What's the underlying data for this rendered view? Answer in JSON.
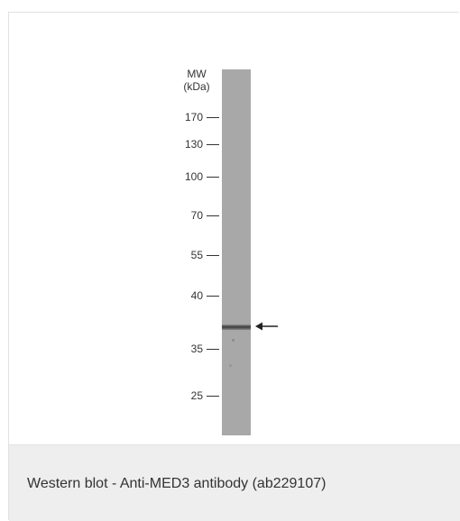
{
  "figure": {
    "mw_header_line1": "MW",
    "mw_header_line2": "(kDa)",
    "markers": [
      "170",
      "130",
      "100",
      "70",
      "55",
      "40",
      "35",
      "25"
    ],
    "arrow_icon": "left-arrow-icon"
  },
  "caption": {
    "text": "Western blot - Anti-MED3 antibody (ab229107)"
  },
  "colors": {
    "lane": "#a8a8a8",
    "band": "#373737",
    "caption_bg": "#eeeeee",
    "text": "#333333"
  }
}
